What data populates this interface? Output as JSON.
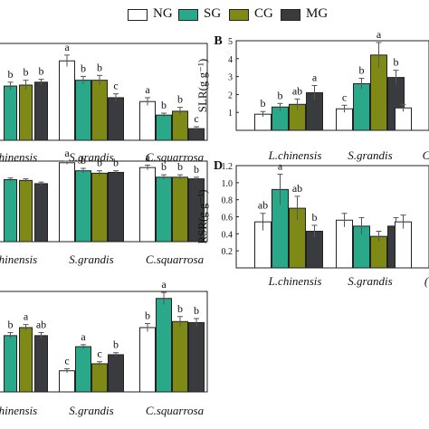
{
  "colors": {
    "NG": "#ffffff",
    "SG": "#2aa98a",
    "CG": "#7f8a16",
    "MG": "#3a3b3f"
  },
  "legend": [
    {
      "name": "NG",
      "label": "NG"
    },
    {
      "name": "SG",
      "label": "SG"
    },
    {
      "name": "CG",
      "label": "CG"
    },
    {
      "name": "MG",
      "label": "MG"
    }
  ],
  "chart_data": [
    {
      "panel": "A",
      "type": "bar",
      "categories": [
        "L.chinensis",
        "S.grandis",
        "C.squarrosa"
      ],
      "xlabel": "",
      "ylabel": "",
      "ylim": [
        0,
        1
      ],
      "series": [
        {
          "name": "NG",
          "values": [
            null,
            0.82,
            0.4
          ],
          "errors": [
            null,
            0.06,
            0.04
          ]
        },
        {
          "name": "SG",
          "values": [
            0.56,
            0.62,
            0.26
          ],
          "errors": [
            0.04,
            0.04,
            0.02
          ]
        },
        {
          "name": "CG",
          "values": [
            0.57,
            0.62,
            0.3
          ],
          "errors": [
            0.05,
            0.05,
            0.04
          ]
        },
        {
          "name": "MG",
          "values": [
            0.6,
            0.44,
            0.12
          ],
          "errors": [
            0.03,
            0.04,
            0.02
          ]
        }
      ],
      "letters": [
        [
          "",
          "b",
          "b",
          "b"
        ],
        [
          "a",
          "b",
          "b",
          "c"
        ],
        [
          "a",
          "b",
          "b",
          "c"
        ]
      ]
    },
    {
      "panel": "B",
      "type": "bar",
      "categories": [
        "L.chinensis",
        "S.grandis",
        "C.squarrosa"
      ],
      "xlabel": "",
      "ylabel": "SLR(g g⁻¹)",
      "ylim": [
        0,
        5
      ],
      "yticks": [
        1,
        2,
        3,
        4,
        5
      ],
      "series": [
        {
          "name": "NG",
          "values": [
            0.9,
            1.2,
            1.25
          ],
          "errors": [
            0.15,
            0.2,
            0.2
          ]
        },
        {
          "name": "SG",
          "values": [
            1.3,
            2.6,
            null
          ],
          "errors": [
            0.2,
            0.3,
            null
          ]
        },
        {
          "name": "CG",
          "values": [
            1.45,
            4.2,
            null
          ],
          "errors": [
            0.3,
            0.7,
            null
          ]
        },
        {
          "name": "MG",
          "values": [
            2.1,
            2.95,
            null
          ],
          "errors": [
            0.4,
            0.4,
            null
          ]
        }
      ],
      "letters": [
        [
          "b",
          "b",
          "ab",
          "a"
        ],
        [
          "c",
          "b",
          "a",
          "b"
        ],
        [
          "",
          "",
          "",
          ""
        ]
      ]
    },
    {
      "panel": "C",
      "type": "bar",
      "categories": [
        "L.chinensis",
        "S.grandis",
        "C.squarrosa"
      ],
      "xlabel": "",
      "ylabel": "",
      "ylim": [
        0,
        1
      ],
      "series": [
        {
          "name": "NG",
          "values": [
            null,
            0.98,
            0.92
          ],
          "errors": [
            null,
            0.02,
            0.03
          ]
        },
        {
          "name": "SG",
          "values": [
            0.77,
            0.88,
            0.8
          ],
          "errors": [
            0.02,
            0.03,
            0.03
          ]
        },
        {
          "name": "CG",
          "values": [
            0.76,
            0.85,
            0.8
          ],
          "errors": [
            0.02,
            0.03,
            0.03
          ]
        },
        {
          "name": "MG",
          "values": [
            0.72,
            0.86,
            0.78
          ],
          "errors": [
            0.02,
            0.02,
            0.02
          ]
        }
      ],
      "letters": [
        [
          "",
          "",
          "",
          ""
        ],
        [
          "a",
          "b",
          "b",
          "b"
        ],
        [
          "a",
          "b",
          "b",
          "b"
        ]
      ]
    },
    {
      "panel": "D",
      "type": "bar",
      "categories": [
        "L.chinensis",
        "S.grandis",
        "C.squarrosa"
      ],
      "xlabel": "",
      "ylabel": "RSR(g g⁻¹)",
      "ylim": [
        0,
        1.2
      ],
      "yticks": [
        0.2,
        0.4,
        0.6,
        0.8,
        1.0,
        1.2
      ],
      "series": [
        {
          "name": "NG",
          "values": [
            0.54,
            0.56,
            0.54
          ],
          "errors": [
            0.1,
            0.08,
            0.08
          ]
        },
        {
          "name": "SG",
          "values": [
            0.92,
            0.49,
            null
          ],
          "errors": [
            0.18,
            0.1,
            null
          ]
        },
        {
          "name": "CG",
          "values": [
            0.7,
            0.37,
            null
          ],
          "errors": [
            0.14,
            0.06,
            null
          ]
        },
        {
          "name": "MG",
          "values": [
            0.43,
            0.49,
            null
          ],
          "errors": [
            0.07,
            0.1,
            null
          ]
        }
      ],
      "letters": [
        [
          "ab",
          "a",
          "ab",
          "b"
        ],
        [
          "",
          "",
          "",
          ""
        ],
        [
          "",
          "",
          "",
          ""
        ]
      ]
    },
    {
      "panel": "E",
      "type": "bar",
      "categories": [
        "L.chinensis",
        "S.grandis",
        "C.squarrosa"
      ],
      "xlabel": "",
      "ylabel": "",
      "ylim": [
        0,
        1
      ],
      "series": [
        {
          "name": "NG",
          "values": [
            null,
            0.21,
            0.64
          ],
          "errors": [
            null,
            0.02,
            0.04
          ]
        },
        {
          "name": "SG",
          "values": [
            0.56,
            0.45,
            0.93
          ],
          "errors": [
            0.03,
            0.02,
            0.06
          ]
        },
        {
          "name": "CG",
          "values": [
            0.64,
            0.28,
            0.7
          ],
          "errors": [
            0.03,
            0.02,
            0.05
          ]
        },
        {
          "name": "MG",
          "values": [
            0.56,
            0.37,
            0.69
          ],
          "errors": [
            0.03,
            0.02,
            0.04
          ]
        }
      ],
      "letters": [
        [
          "",
          "b",
          "a",
          "ab"
        ],
        [
          "c",
          "a",
          "c",
          "b"
        ],
        [
          "b",
          "a",
          "b",
          "b"
        ]
      ]
    }
  ],
  "panel_labels": {
    "B": "B",
    "D": "D"
  },
  "category_labels": {
    "lchinensis": "L.chinensis",
    "lchinensis_partial": "chinensis",
    "sgrandis": "S.grandis",
    "csquarrosa": "C.squarrosa",
    "cut_c": "C",
    "cut_c_bold": "("
  }
}
